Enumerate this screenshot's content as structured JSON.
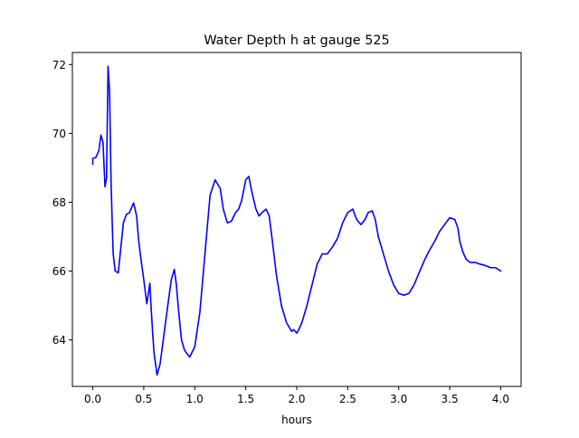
{
  "chart_data": {
    "type": "line",
    "title": "Water Depth h at gauge 525",
    "xlabel": "hours",
    "ylabel": "",
    "xlim": [
      -0.2,
      4.2
    ],
    "ylim": [
      62.65,
      72.35
    ],
    "x_ticks": [
      0.0,
      0.5,
      1.0,
      1.5,
      2.0,
      2.5,
      3.0,
      3.5,
      4.0
    ],
    "x_tick_labels": [
      "0.0",
      "0.5",
      "1.0",
      "1.5",
      "2.0",
      "2.5",
      "3.0",
      "3.5",
      "4.0"
    ],
    "y_ticks": [
      64,
      66,
      68,
      70,
      72
    ],
    "y_tick_labels": [
      "64",
      "66",
      "68",
      "70",
      "72"
    ],
    "grid": false,
    "series": [
      {
        "color": "#0000ff",
        "x": [
          0.0,
          0.0,
          0.03,
          0.06,
          0.08,
          0.1,
          0.12,
          0.135,
          0.15,
          0.165,
          0.18,
          0.2,
          0.22,
          0.25,
          0.3,
          0.33,
          0.36,
          0.4,
          0.43,
          0.45,
          0.47,
          0.5,
          0.53,
          0.56,
          0.57,
          0.585,
          0.6,
          0.63,
          0.66,
          0.7,
          0.74,
          0.77,
          0.8,
          0.82,
          0.84,
          0.87,
          0.9,
          0.95,
          1.0,
          1.05,
          1.1,
          1.15,
          1.2,
          1.25,
          1.28,
          1.32,
          1.36,
          1.4,
          1.43,
          1.46,
          1.5,
          1.53,
          1.56,
          1.6,
          1.63,
          1.66,
          1.7,
          1.73,
          1.76,
          1.8,
          1.85,
          1.9,
          1.95,
          1.97,
          2.0,
          2.02,
          2.05,
          2.1,
          2.15,
          2.2,
          2.25,
          2.3,
          2.35,
          2.4,
          2.45,
          2.5,
          2.55,
          2.58,
          2.6,
          2.63,
          2.67,
          2.7,
          2.74,
          2.77,
          2.8,
          2.85,
          2.9,
          2.95,
          3.0,
          3.05,
          3.1,
          3.15,
          3.2,
          3.25,
          3.3,
          3.35,
          3.4,
          3.45,
          3.5,
          3.55,
          3.58,
          3.6,
          3.63,
          3.66,
          3.7,
          3.75,
          3.8,
          3.83,
          3.86,
          3.9,
          3.95,
          4.0
        ],
        "y": [
          69.1,
          69.27,
          69.3,
          69.5,
          69.95,
          69.75,
          68.45,
          68.7,
          71.95,
          71.2,
          68.5,
          66.5,
          66.0,
          65.95,
          67.4,
          67.65,
          67.7,
          67.98,
          67.6,
          66.9,
          66.4,
          65.75,
          65.05,
          65.65,
          65.05,
          64.3,
          63.65,
          62.98,
          63.3,
          64.2,
          65.1,
          65.75,
          66.05,
          65.6,
          64.9,
          64.0,
          63.7,
          63.5,
          63.8,
          64.8,
          66.5,
          68.2,
          68.65,
          68.4,
          67.8,
          67.4,
          67.45,
          67.7,
          67.8,
          68.05,
          68.65,
          68.75,
          68.3,
          67.8,
          67.6,
          67.7,
          67.8,
          67.6,
          66.9,
          65.9,
          65.0,
          64.5,
          64.25,
          64.3,
          64.2,
          64.3,
          64.5,
          65.0,
          65.6,
          66.2,
          66.5,
          66.5,
          66.7,
          66.95,
          67.4,
          67.7,
          67.8,
          67.55,
          67.45,
          67.35,
          67.5,
          67.7,
          67.75,
          67.5,
          67.0,
          66.5,
          66.0,
          65.6,
          65.35,
          65.3,
          65.35,
          65.6,
          65.95,
          66.3,
          66.6,
          66.85,
          67.15,
          67.35,
          67.55,
          67.5,
          67.25,
          66.85,
          66.55,
          66.35,
          66.25,
          66.25,
          66.2,
          66.18,
          66.15,
          66.1,
          66.1,
          66.0
        ]
      }
    ]
  }
}
